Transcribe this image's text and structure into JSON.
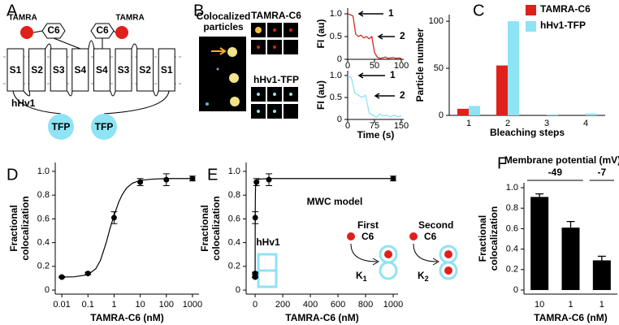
{
  "panel_labels": [
    "A",
    "B",
    "C",
    "D",
    "E",
    "F"
  ],
  "diagram_a": {
    "ligand_labels": [
      "TAMRA",
      "TAMRA"
    ],
    "toxin_labels": [
      "C6",
      "C6"
    ],
    "segments": [
      "S1",
      "S2",
      "S3",
      "S4",
      "S4",
      "S3",
      "S2",
      "S1"
    ],
    "channel": "hHv1",
    "tags": [
      "TFP",
      "TFP"
    ]
  },
  "panel_b": {
    "image_title": [
      "Colocalized",
      "particles"
    ],
    "channel_titles": [
      "TAMRA-C6",
      "hHv1-TFP"
    ]
  },
  "mwc": {
    "title": "MWC model",
    "channel": "hHv1",
    "steps": [
      {
        "label": "First",
        "ligand": "C6",
        "constant": "K",
        "subscript": "1"
      },
      {
        "label": "Second",
        "ligand": "C6",
        "constant": "K",
        "subscript": "2"
      }
    ]
  },
  "chart_data": [
    {
      "type": "line",
      "ylabel": "FI (au)",
      "x": [
        0,
        5,
        10,
        15,
        20,
        25,
        30,
        35,
        40,
        45,
        50,
        55,
        60,
        65,
        70,
        75,
        80,
        85,
        90,
        95,
        100
      ],
      "series": [
        {
          "color": "#d42a20",
          "values": [
            1.0,
            0.98,
            0.95,
            0.55,
            0.5,
            0.53,
            0.47,
            0.5,
            0.45,
            0.5,
            0.15,
            0.05,
            0.02,
            0.03,
            0.05,
            0.02,
            0.03,
            0.04,
            0.02,
            0.03,
            0.02
          ]
        }
      ],
      "xlim": [
        0,
        104.5
      ],
      "ylim": [
        0,
        1.125
      ],
      "xticks": [
        0,
        50,
        100
      ],
      "yticks": [
        0,
        0.5,
        {
          "value": 1,
          "label": "1.0"
        }
      ],
      "annotations": [
        "1",
        "2"
      ]
    },
    {
      "type": "line",
      "ylabel": "FI (au)",
      "xlabel": "Time (s)",
      "x": [
        0,
        10,
        20,
        30,
        40,
        50,
        60,
        70,
        80,
        90,
        100,
        110,
        120,
        130,
        140,
        150
      ],
      "series": [
        {
          "color": "#8ee3f5",
          "values": [
            1.0,
            0.95,
            0.6,
            0.55,
            0.5,
            0.55,
            0.15,
            0.1,
            0.05,
            0.12,
            0.08,
            0.1,
            0.05,
            0.1,
            0.06,
            0.08
          ]
        }
      ],
      "xlim": [
        0,
        156.8
      ],
      "ylim": [
        0,
        1.11
      ],
      "xticks": [
        0,
        75,
        150
      ],
      "yticks": [
        0,
        0.5,
        {
          "value": 1,
          "label": "1.0"
        }
      ],
      "annotations": [
        "1",
        "2"
      ]
    },
    {
      "type": "bar",
      "xlabel": "Bleaching steps",
      "ylabel": "Particle number",
      "categories": [
        "1",
        "2",
        "3",
        "4"
      ],
      "series": [
        {
          "name": "TAMRA-C6",
          "color": "#e0201b",
          "values": [
            7,
            53,
            0,
            0
          ]
        },
        {
          "name": "hHv1-TFP",
          "color": "#8ee3f5",
          "values": [
            10,
            100,
            1,
            2
          ]
        }
      ],
      "ylim": [
        0,
        107
      ],
      "yticks": [
        0,
        50,
        100
      ],
      "legend": "top-right"
    },
    {
      "type": "scatter",
      "xlabel": "TAMRA-C6 (nM)",
      "ylabel": [
        "Fractional",
        "colocalization"
      ],
      "xscale": "log",
      "x": [
        0.01,
        0.1,
        1,
        10,
        100,
        1000
      ],
      "values": [
        0.11,
        0.14,
        0.61,
        0.91,
        0.93,
        0.94
      ],
      "errors": [
        0.005,
        0.01,
        0.05,
        0.03,
        0.05,
        0.02
      ],
      "fit": {
        "x": [
          0.01,
          0.03,
          0.1,
          0.2,
          0.3,
          0.5,
          0.7,
          1,
          1.5,
          2,
          3,
          5,
          10,
          30,
          100,
          1000
        ],
        "values": [
          0.11,
          0.112,
          0.13,
          0.18,
          0.25,
          0.4,
          0.52,
          0.63,
          0.74,
          0.8,
          0.86,
          0.9,
          0.925,
          0.935,
          0.94,
          0.94
        ]
      },
      "color": "#000000",
      "xlim": [
        0.0056,
        1780
      ],
      "ylim": [
        -0.034,
        1.075
      ],
      "xticks": [
        0.01,
        0.1,
        1,
        10,
        100,
        1000
      ],
      "yticks": [
        0,
        0.2,
        0.4,
        0.6,
        0.8,
        {
          "value": 1,
          "label": "1.0"
        }
      ]
    },
    {
      "type": "scatter",
      "xlabel": "TAMRA-C6 (nM)",
      "ylabel": [
        "Fractional",
        "colocalization"
      ],
      "x": [
        0.01,
        0.1,
        1,
        10,
        100,
        1000
      ],
      "values": [
        0.11,
        0.14,
        0.61,
        0.91,
        0.93,
        0.94
      ],
      "errors": [
        0.005,
        0.01,
        0.05,
        0.03,
        0.05,
        0.02
      ],
      "fit": {
        "x": [
          0.01,
          0.03,
          0.1,
          0.2,
          0.3,
          0.5,
          0.7,
          1,
          1.5,
          2,
          3,
          5,
          10,
          30,
          100,
          1000
        ],
        "values": [
          0.11,
          0.112,
          0.13,
          0.18,
          0.25,
          0.4,
          0.52,
          0.63,
          0.74,
          0.8,
          0.86,
          0.9,
          0.925,
          0.935,
          0.94,
          0.94
        ]
      },
      "color": "#000000",
      "xlim": [
        -65,
        1035
      ],
      "ylim": [
        -0.034,
        1.075
      ],
      "xticks": [
        0,
        200,
        400,
        600,
        800,
        1000
      ],
      "yticks": [
        0,
        0.2,
        0.4,
        0.6,
        0.8,
        {
          "value": 1,
          "label": "1.0"
        }
      ]
    },
    {
      "type": "bar",
      "title": "Membrane potential (mV)",
      "groups": [
        "-49",
        "-7"
      ],
      "xlabel": "TAMRA-C6 (nM)",
      "ylabel": [
        "Fractional",
        "colocalization"
      ],
      "categories": [
        "10",
        "1",
        "1"
      ],
      "values": [
        0.91,
        0.61,
        0.29
      ],
      "errors": [
        0.03,
        0.06,
        0.04
      ],
      "color": "#000000",
      "ylim": [
        -0.04,
        1.048
      ],
      "yticks": [
        0,
        0.2,
        0.4,
        0.6,
        0.8,
        {
          "value": 1,
          "label": "1.0"
        }
      ]
    }
  ]
}
